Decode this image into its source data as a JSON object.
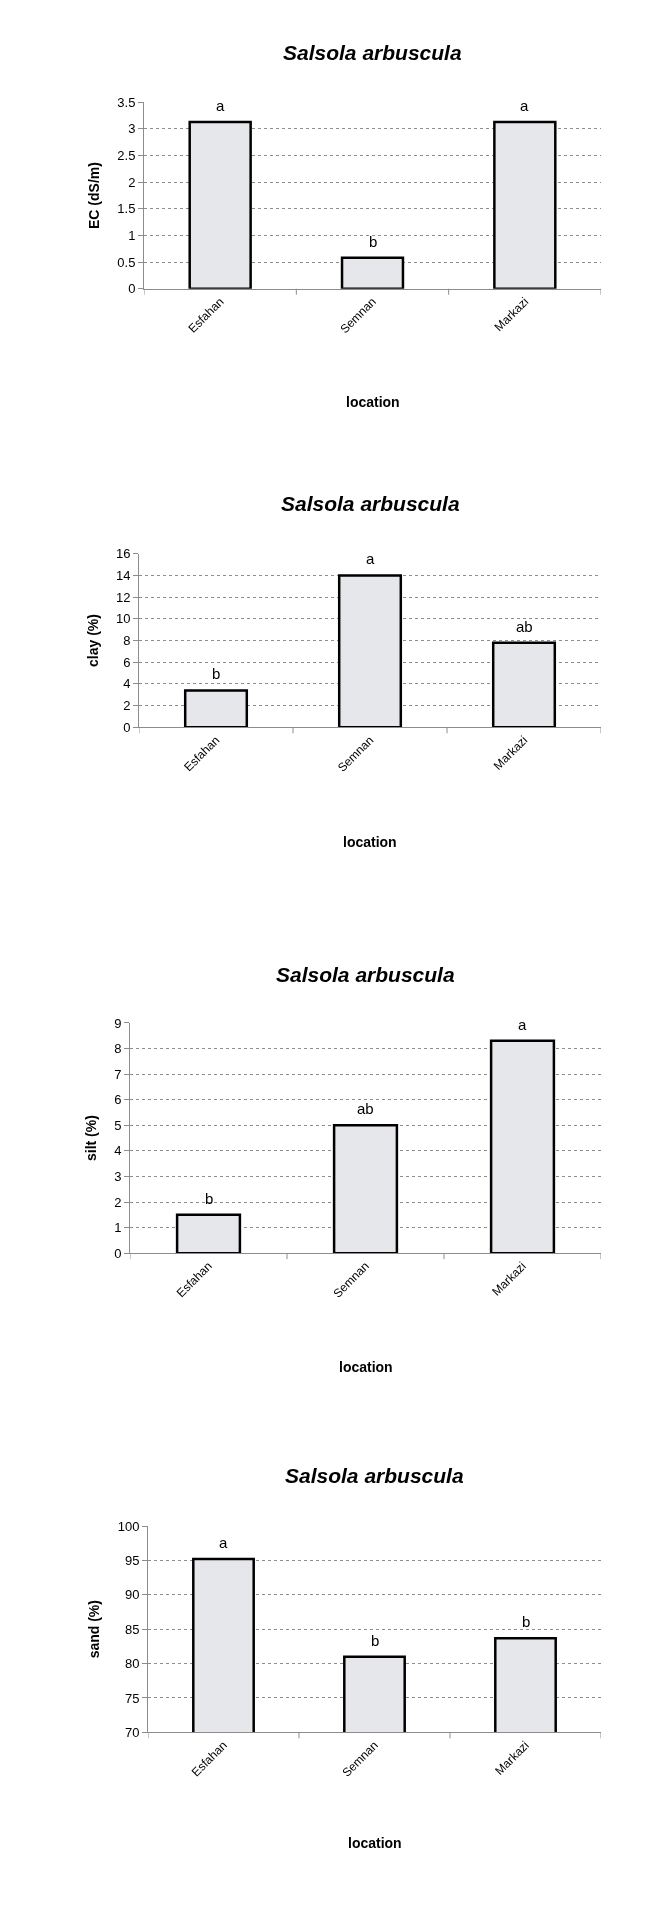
{
  "chart_data": [
    {
      "type": "bar",
      "title": "Salsola arbuscula",
      "xlabel": "location",
      "ylabel": "EC (dS/m)",
      "categories": [
        "Esfahan",
        "Semnan",
        "Markazi"
      ],
      "values": [
        3.13,
        0.58,
        3.13
      ],
      "color": "#e6e7ea",
      "ylim": [
        0,
        3.5
      ],
      "yticks": [
        0,
        {
          "value": 0.5,
          "label": "0.5"
        },
        1,
        {
          "value": 1.5,
          "label": "1.5"
        },
        2,
        {
          "value": 2.5,
          "label": "2.5"
        },
        3,
        {
          "value": 3.5,
          "label": "3.5"
        }
      ],
      "grid": "y",
      "annotations": [
        {
          "text": "a",
          "x": "Esfahan",
          "y": 3.13
        },
        {
          "text": "b",
          "x": "Semnan",
          "y": 0.58
        },
        {
          "text": "a",
          "x": "Markazi",
          "y": 3.13
        }
      ]
    },
    {
      "type": "bar",
      "title": "Salsola arbuscula",
      "xlabel": "location",
      "ylabel": "clay (%)",
      "categories": [
        "Esfahan",
        "Semnan",
        "Markazi"
      ],
      "values": [
        3.4,
        14.0,
        7.8
      ],
      "color": "#e6e7ea",
      "ylim": [
        0,
        16
      ],
      "yticks": [
        0,
        2,
        4,
        6,
        8,
        10,
        12,
        14,
        16
      ],
      "grid": "y",
      "annotations": [
        {
          "text": "b",
          "x": "Esfahan",
          "y": 3.4
        },
        {
          "text": "a",
          "x": "Semnan",
          "y": 14.0
        },
        {
          "text": "ab",
          "x": "Markazi",
          "y": 7.8
        }
      ]
    },
    {
      "type": "bar",
      "title": "Salsola arbuscula",
      "xlabel": "location",
      "ylabel": "silt (%)",
      "categories": [
        "Esfahan",
        "Semnan",
        "Markazi"
      ],
      "values": [
        1.5,
        5.0,
        8.3
      ],
      "color": "#e6e7ea",
      "ylim": [
        0,
        9
      ],
      "yticks": [
        0,
        1,
        2,
        3,
        4,
        5,
        6,
        7,
        8,
        9
      ],
      "grid": "y",
      "annotations": [
        {
          "text": "b",
          "x": "Esfahan",
          "y": 1.5
        },
        {
          "text": "ab",
          "x": "Semnan",
          "y": 5.0
        },
        {
          "text": "a",
          "x": "Markazi",
          "y": 8.3
        }
      ]
    },
    {
      "type": "bar",
      "title": "Salsola arbuscula",
      "xlabel": "location",
      "ylabel": "sand (%)",
      "categories": [
        "Esfahan",
        "Semnan",
        "Markazi"
      ],
      "values": [
        95.2,
        81.0,
        83.7
      ],
      "color": "#e6e7ea",
      "ylim": [
        70,
        100
      ],
      "yticks": [
        70,
        75,
        80,
        85,
        90,
        95,
        100
      ],
      "grid": "y",
      "annotations": [
        {
          "text": "a",
          "x": "Esfahan",
          "y": 95.2
        },
        {
          "text": "b",
          "x": "Semnan",
          "y": 81.0
        },
        {
          "text": "b",
          "x": "Markazi",
          "y": 83.7
        }
      ]
    }
  ]
}
